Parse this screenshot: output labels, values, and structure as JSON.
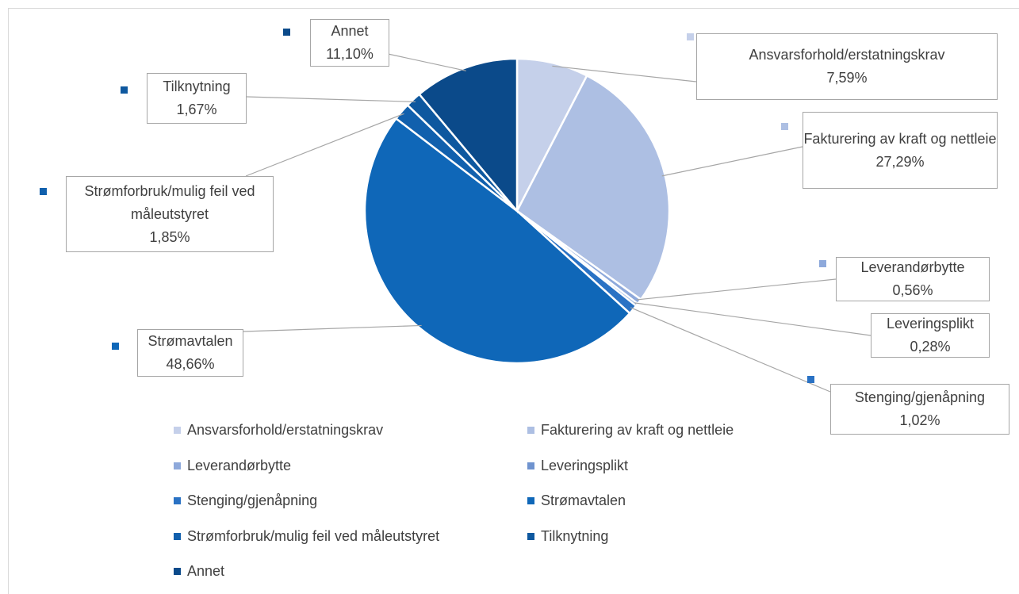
{
  "chart_data": {
    "type": "pie",
    "categories": [
      "Ansvarsforhold/erstatningskrav",
      "Fakturering av kraft og nettleie",
      "Leverandørbytte",
      "Leveringsplikt",
      "Stenging/gjenåpning",
      "Strømavtalen",
      "Strømforbruk/mulig feil ved måleutstyret",
      "Tilknytning",
      "Annet"
    ],
    "values": [
      7.59,
      27.29,
      0.56,
      0.28,
      1.02,
      48.66,
      1.85,
      1.67,
      11.1
    ],
    "value_labels": [
      "7,59%",
      "27,29%",
      "0,56%",
      "0,28%",
      "1,02%",
      "48,66%",
      "1,85%",
      "1,67%",
      "11,10%"
    ],
    "colors": [
      "#c5d0ea",
      "#adbfe3",
      "#8ea9db",
      "#6f93cf",
      "#2a72c4",
      "#0f67b8",
      "#1160ad",
      "#0e589f",
      "#0b4a8a"
    ],
    "legend": "bottom"
  }
}
